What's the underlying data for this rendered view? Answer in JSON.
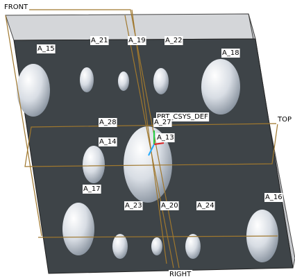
{
  "datum_planes": {
    "front": "FRONT",
    "top": "TOP",
    "right": "RIGHT"
  },
  "csys": "PRT_CSYS_DEF",
  "axes": [
    "A_15",
    "A_21",
    "A_19",
    "A_22",
    "A_18",
    "A_28",
    "A_27",
    "A_13",
    "A_14",
    "A_17",
    "A_23",
    "A_20",
    "A_24",
    "A_16"
  ]
}
